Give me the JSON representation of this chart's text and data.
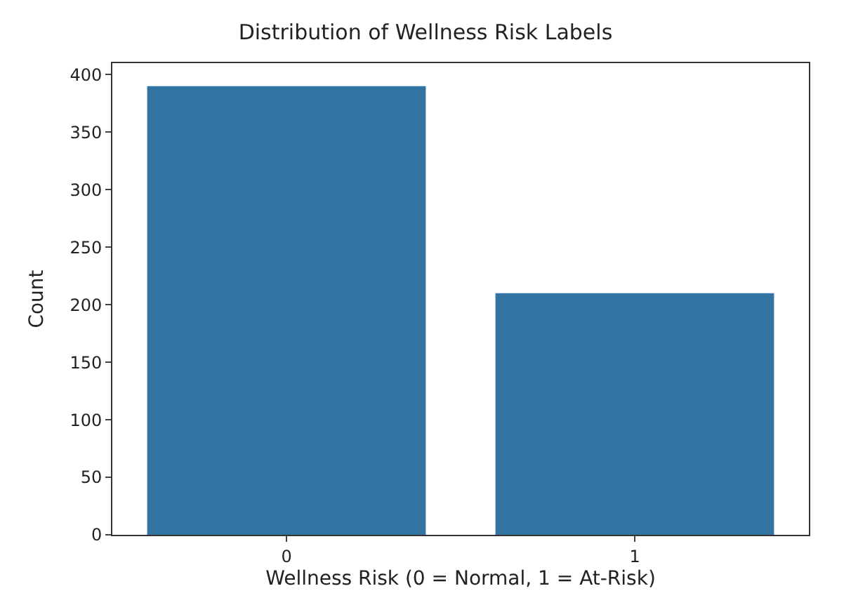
{
  "chart_data": {
    "type": "bar",
    "title": "Distribution of Wellness Risk Labels",
    "xlabel": "Wellness Risk (0 = Normal, 1 = At-Risk)",
    "ylabel": "Count",
    "categories": [
      "0",
      "1"
    ],
    "values": [
      390,
      210
    ],
    "color": "#3274a1",
    "ylim": [
      0,
      410
    ],
    "yticks": [
      0,
      50,
      100,
      150,
      200,
      250,
      300,
      350,
      400
    ]
  }
}
